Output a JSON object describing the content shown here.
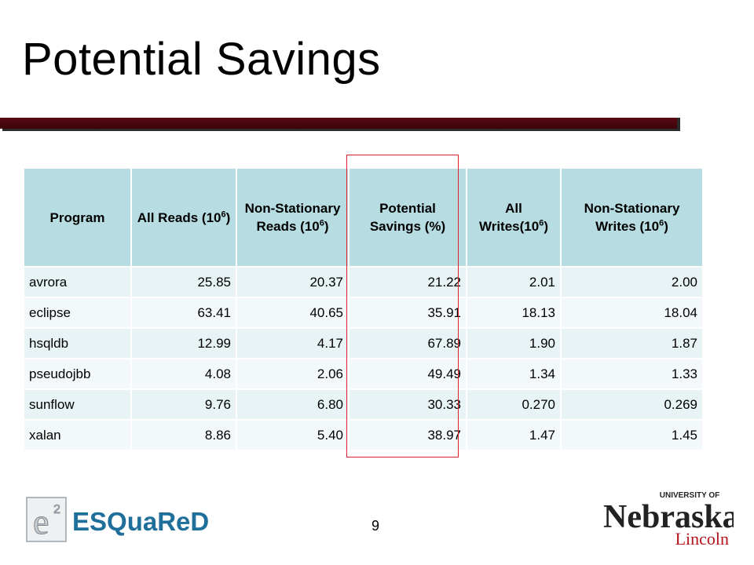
{
  "slide": {
    "title": "Potential Savings",
    "page_number": "9"
  },
  "table": {
    "headers": [
      {
        "text": "Program",
        "sup": "",
        "after": ""
      },
      {
        "text": "All Reads (10",
        "sup": "6",
        "after": ")"
      },
      {
        "text": "Non-Stationary Reads (10",
        "sup": "6",
        "after": ")"
      },
      {
        "text": "Potential Savings (%)",
        "sup": "",
        "after": ""
      },
      {
        "text": "All Writes(10",
        "sup": "6",
        "after": ")"
      },
      {
        "text": "Non-Stationary Writes (10",
        "sup": "6",
        "after": ")"
      }
    ],
    "rows": [
      [
        "avrora",
        "25.85",
        "20.37",
        "21.22",
        "2.01",
        "2.00"
      ],
      [
        "eclipse",
        "63.41",
        "40.65",
        "35.91",
        "18.13",
        "18.04"
      ],
      [
        "hsqldb",
        "12.99",
        "4.17",
        "67.89",
        "1.90",
        "1.87"
      ],
      [
        "pseudojbb",
        "4.08",
        "2.06",
        "49.49",
        "1.34",
        "1.33"
      ],
      [
        "sunflow",
        "9.76",
        "6.80",
        "30.33",
        "0.270",
        "0.269"
      ],
      [
        "xalan",
        "8.86",
        "5.40",
        "38.97",
        "1.47",
        "1.45"
      ]
    ]
  },
  "logos": {
    "left_text": "ESQuaReD",
    "left_mark": "e",
    "left_mark_sup": "2",
    "right_top": "UNIVERSITY OF",
    "right_main": "Nebraska",
    "right_sub": "Lincoln"
  },
  "colors": {
    "title_bar": "#4a0610",
    "header_bg": "#b7dde2",
    "row_odd": "#e7f3f4",
    "row_even": "#f3f9fa",
    "highlight": "#e0202a",
    "esq_blue": "#1f6f9a",
    "unl_red": "#b5121b"
  }
}
